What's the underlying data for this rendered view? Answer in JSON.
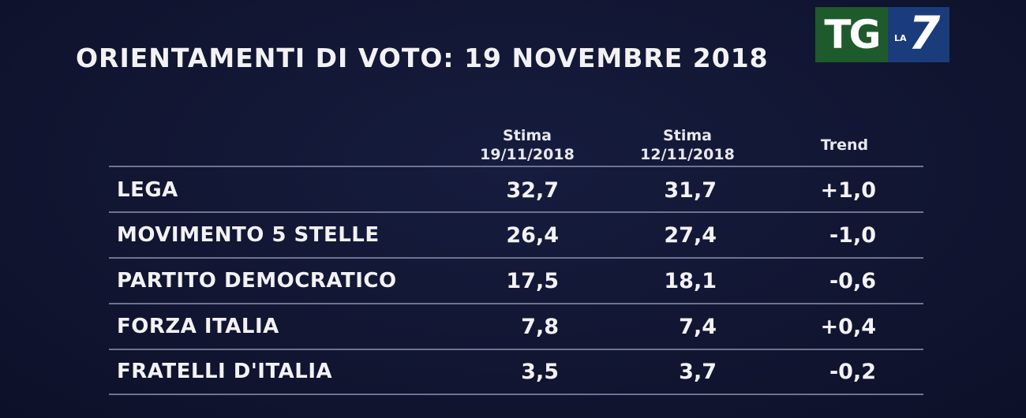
{
  "title": "ORIENTAMENTI DI VOTO: 19 NOVEMBRE 2018",
  "logo": {
    "left_text": "TG",
    "small_text": "LA",
    "big_text": "7",
    "green": "#1f5a2d",
    "blue": "#1b3c7a"
  },
  "columns": {
    "c1": {
      "line1": "Stima",
      "line2": "19/11/2018"
    },
    "c2": {
      "line1": "Stima",
      "line2": "12/11/2018"
    },
    "c3": {
      "line1": "Trend"
    }
  },
  "rows": [
    {
      "party": "LEGA",
      "est1": "32,7",
      "est2": "31,7",
      "trend": "+1,0"
    },
    {
      "party": "MOVIMENTO 5 STELLE",
      "est1": "26,4",
      "est2": "27,4",
      "trend": "-1,0"
    },
    {
      "party": "PARTITO DEMOCRATICO",
      "est1": "17,5",
      "est2": "18,1",
      "trend": "-0,6"
    },
    {
      "party": "FORZA ITALIA",
      "est1": "7,8",
      "est2": "7,4",
      "trend": "+0,4"
    },
    {
      "party": "FRATELLI D'ITALIA",
      "est1": "3,5",
      "est2": "3,7",
      "trend": "-0,2"
    }
  ]
}
